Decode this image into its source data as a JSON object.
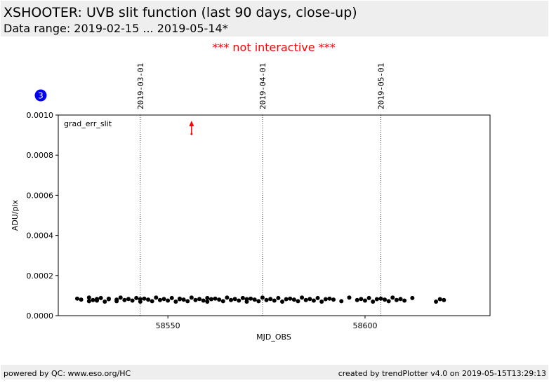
{
  "header": {
    "title": "XSHOOTER: UVB slit function (last 90 days, close-up)",
    "subtitle": "Data range: 2019-02-15 ... 2019-05-14*"
  },
  "notice": "*** not interactive ***",
  "badge": "3",
  "chart_data": {
    "type": "scatter",
    "series_label": "grad_err_slit",
    "xlabel": "MJD_OBS",
    "ylabel": "ADU/pix",
    "color": "#000000",
    "xlim": [
      58522.2,
      58631.7
    ],
    "xticks": [
      58550,
      58600
    ],
    "ylim": [
      0,
      0.001
    ],
    "yticks": [
      {
        "value": 0,
        "label": "0.0000"
      },
      {
        "value": 0.0002,
        "label": "0.0002"
      },
      {
        "value": 0.0004,
        "label": "0.0004"
      },
      {
        "value": 0.0006,
        "label": "0.0006"
      },
      {
        "value": 0.0008,
        "label": "0.0008"
      },
      {
        "value": 0.001,
        "label": "0.0010"
      }
    ],
    "date_lines": [
      {
        "value": 58543,
        "label": "2019-03-01"
      },
      {
        "value": 58574,
        "label": "2019-04-01"
      },
      {
        "value": 58604,
        "label": "2019-05-01"
      }
    ],
    "offscale_markers": {
      "x": [
        58556
      ],
      "color": "#ff0000"
    },
    "x": [
      58527,
      58528,
      58530,
      58530,
      58531,
      58532,
      58532,
      58533,
      58534,
      58535,
      58535,
      58537,
      58537,
      58538,
      58539,
      58540,
      58541,
      58542,
      58543,
      58543,
      58544,
      58545,
      58546,
      58547,
      58548,
      58549,
      58550,
      58551,
      58552,
      58553,
      58553,
      58554,
      58555,
      58556,
      58557,
      58558,
      58559,
      58560,
      58560,
      58561,
      58562,
      58563,
      58564,
      58565,
      58566,
      58567,
      58568,
      58569,
      58570,
      58570,
      58571,
      58572,
      58573,
      58574,
      58575,
      58576,
      58577,
      58578,
      58579,
      58580,
      58581,
      58582,
      58583,
      58584,
      58585,
      58586,
      58587,
      58588,
      58589,
      58590,
      58591,
      58592,
      58594,
      58596,
      58598,
      58599,
      58600,
      58601,
      58602,
      58603,
      58604,
      58605,
      58606,
      58607,
      58608,
      58609,
      58610,
      58612,
      58618,
      58619,
      58620
    ],
    "values": [
      8.5e-05,
      8e-05,
      7.2e-05,
      9e-05,
      7.8e-05,
      8.3e-05,
      7.5e-05,
      8.8e-05,
      7e-05,
      8.2e-05,
      8.5e-05,
      8e-05,
      7.2e-05,
      9e-05,
      7.8e-05,
      8.3e-05,
      7.5e-05,
      8.8e-05,
      7e-05,
      8.2e-05,
      8.5e-05,
      8e-05,
      7.2e-05,
      9e-05,
      7.8e-05,
      8.3e-05,
      7.5e-05,
      8.8e-05,
      7e-05,
      8.2e-05,
      8.5e-05,
      8e-05,
      7.2e-05,
      9e-05,
      7.8e-05,
      8.3e-05,
      7.5e-05,
      8.8e-05,
      7e-05,
      8.2e-05,
      8.5e-05,
      8e-05,
      7.2e-05,
      9e-05,
      7.8e-05,
      8.3e-05,
      7.5e-05,
      8.8e-05,
      7e-05,
      8.2e-05,
      8.5e-05,
      8e-05,
      7.2e-05,
      9e-05,
      7.8e-05,
      8.3e-05,
      7.5e-05,
      8.8e-05,
      7e-05,
      8.2e-05,
      8.5e-05,
      8e-05,
      7.2e-05,
      9e-05,
      7.8e-05,
      8.3e-05,
      7.5e-05,
      8.8e-05,
      7e-05,
      8.2e-05,
      8.5e-05,
      8e-05,
      7.2e-05,
      9e-05,
      7.8e-05,
      8.3e-05,
      7.5e-05,
      8.8e-05,
      7e-05,
      8.2e-05,
      8.5e-05,
      8e-05,
      7.2e-05,
      9e-05,
      7.8e-05,
      8.3e-05,
      7.5e-05,
      8.8e-05,
      7e-05,
      8.2e-05,
      7.8e-05
    ]
  },
  "footer": {
    "left": "powered by QC: www.eso.org/HC",
    "right": "created by trendPlotter v4.0 on 2019-05-15T13:29:13"
  }
}
